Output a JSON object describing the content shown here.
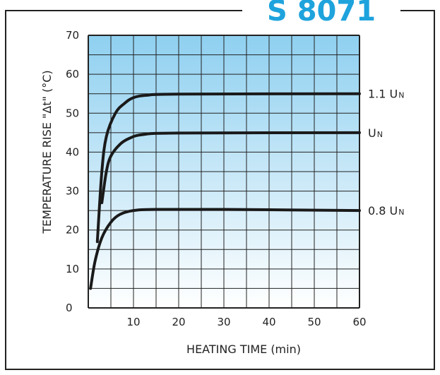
{
  "title": "S 8071",
  "colors": {
    "title": "#1ea3dd",
    "grid_top": "#8fd0f0",
    "grid_bottom": "#ffffff",
    "curve": "#1a1a1a",
    "frame": "#222222"
  },
  "chart_data": {
    "type": "line",
    "xlabel": "HEATING TIME (min)",
    "ylabel": "TEMPERATURE RISE \"Δt\" (°C)",
    "xlim": [
      0,
      60
    ],
    "ylim": [
      0,
      70
    ],
    "x_ticks": [
      "10",
      "20",
      "30",
      "40",
      "50",
      "60"
    ],
    "y_ticks": [
      "0",
      "10",
      "20",
      "30",
      "40",
      "50",
      "60",
      "70"
    ],
    "grid": true,
    "series": [
      {
        "name": "1.1 U",
        "subscript": "N",
        "points": [
          [
            2,
            17
          ],
          [
            3,
            35
          ],
          [
            4,
            44
          ],
          [
            6,
            50
          ],
          [
            8,
            52.5
          ],
          [
            10,
            54
          ],
          [
            13,
            54.6
          ],
          [
            20,
            54.9
          ],
          [
            60,
            55
          ]
        ]
      },
      {
        "name": "U",
        "subscript": "N",
        "points": [
          [
            3,
            27
          ],
          [
            4,
            35
          ],
          [
            5,
            39
          ],
          [
            7,
            42
          ],
          [
            9,
            43.5
          ],
          [
            12,
            44.5
          ],
          [
            20,
            44.9
          ],
          [
            60,
            45
          ]
        ]
      },
      {
        "name": "0.8 U",
        "subscript": "N",
        "points": [
          [
            0.5,
            5
          ],
          [
            1.5,
            12
          ],
          [
            3,
            18
          ],
          [
            5,
            22
          ],
          [
            7,
            24
          ],
          [
            10,
            25
          ],
          [
            15,
            25.3
          ],
          [
            30,
            25.3
          ],
          [
            60,
            25
          ]
        ]
      }
    ]
  }
}
